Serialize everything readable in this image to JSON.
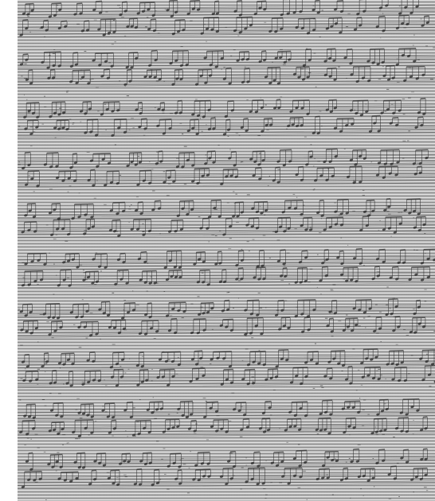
{
  "document": {
    "type": "sheet-music-scan",
    "page_tint": "#b9b9b9",
    "ink_color": "#2a2a2a",
    "systems": 10
  }
}
